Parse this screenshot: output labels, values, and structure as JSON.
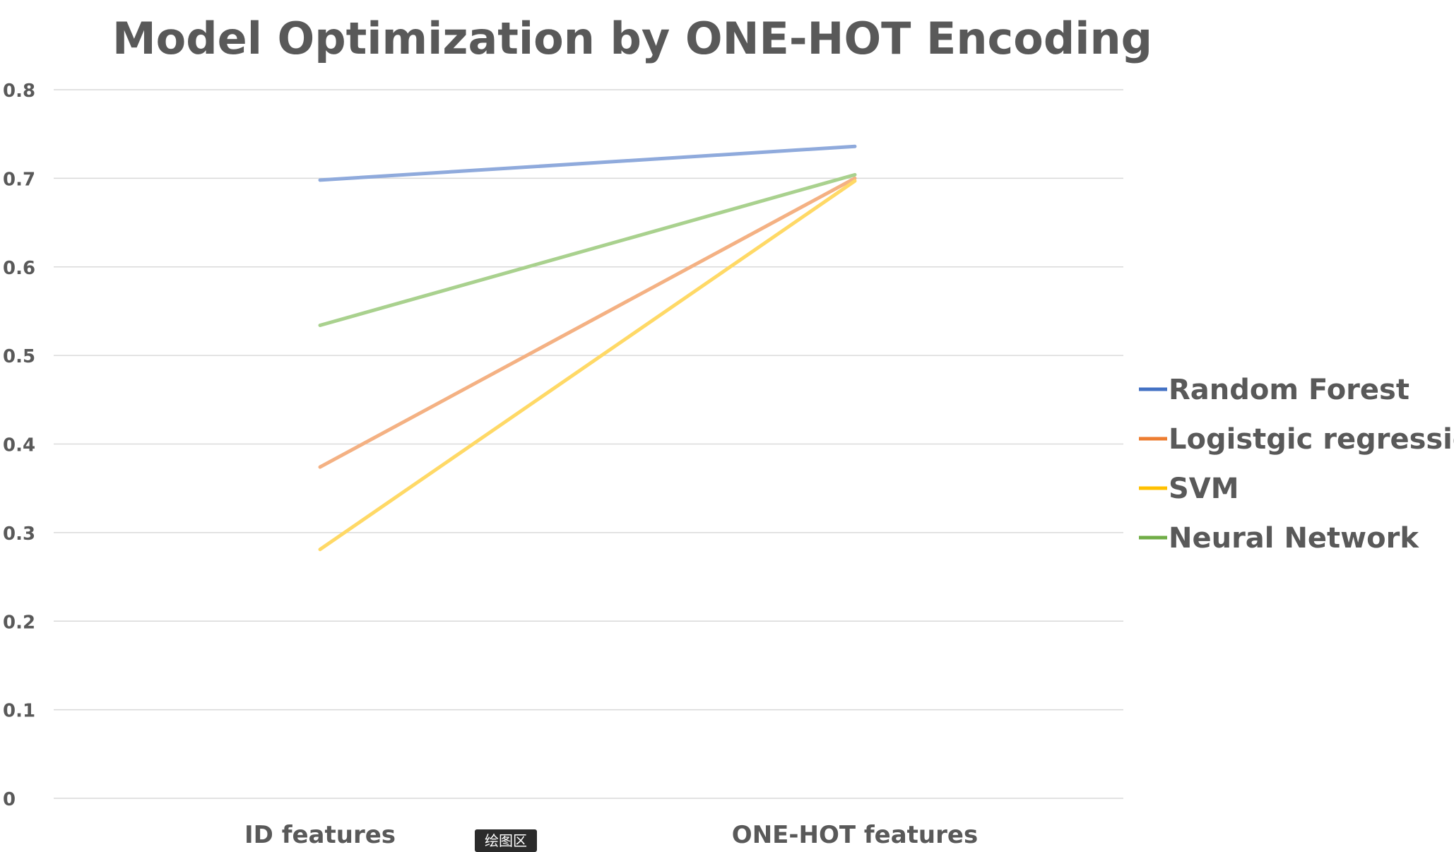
{
  "chart_data": {
    "type": "line",
    "title": "Model Optimization by ONE-HOT Encoding",
    "xlabel": "",
    "ylabel": "",
    "categories": [
      "ID features",
      "ONE-HOT features"
    ],
    "ylim": [
      0,
      0.8
    ],
    "yticks": [
      "0",
      "0.1",
      "0.2",
      "0.3",
      "0.4",
      "0.5",
      "0.6",
      "0.7",
      "0.8"
    ],
    "grid": true,
    "legend_position": "right",
    "series": [
      {
        "name": "Random Forest",
        "values": [
          0.698,
          0.736
        ],
        "color": "#4472C4",
        "line_color": "#8FAADC"
      },
      {
        "name": "Logistgic regression",
        "values": [
          0.374,
          0.7
        ],
        "color": "#ED7D31",
        "line_color": "#F4B183"
      },
      {
        "name": "SVM",
        "values": [
          0.281,
          0.697
        ],
        "color": "#FFC000",
        "line_color": "#FFD966"
      },
      {
        "name": "Neural Network",
        "values": [
          0.534,
          0.704
        ],
        "color": "#70AD47",
        "line_color": "#A9D18E"
      }
    ]
  },
  "tooltip": {
    "label": "绘图区"
  }
}
